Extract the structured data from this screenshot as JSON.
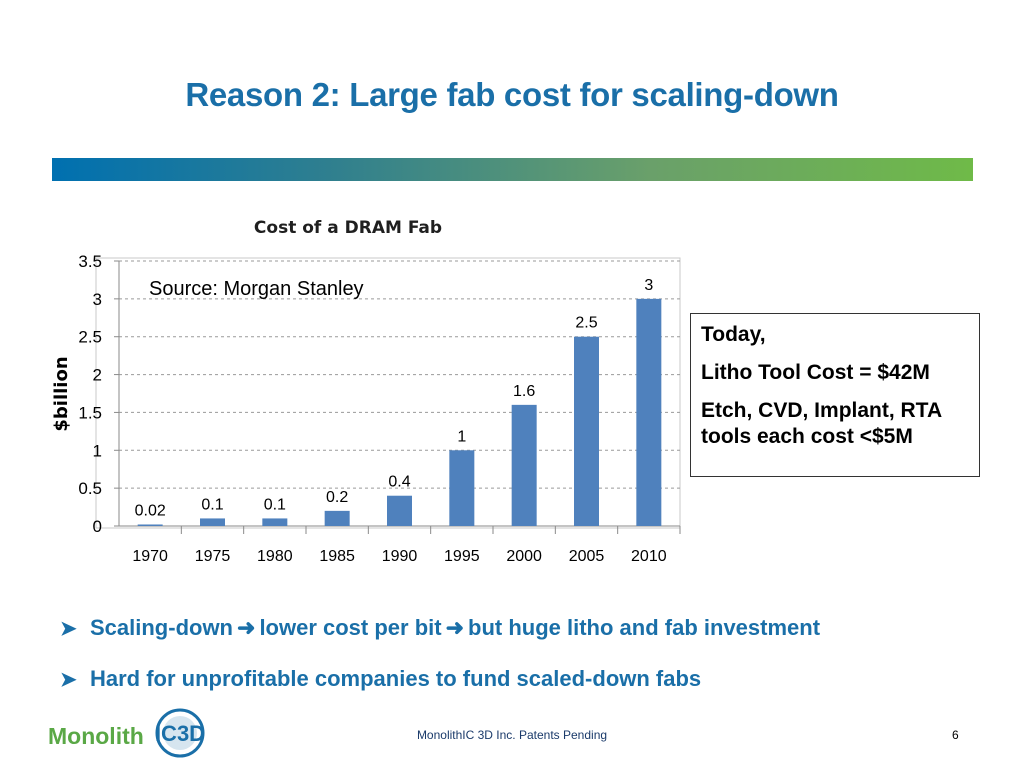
{
  "slide": {
    "title": "Reason 2: Large fab cost for scaling-down",
    "footer_text": "MonolithIC 3D Inc. Patents Pending",
    "page_number": "6",
    "logo_text": "Monolith",
    "logo_badge": "IC3D"
  },
  "chart_data": {
    "type": "bar",
    "title": "Cost of a DRAM Fab",
    "ylabel": "$billion",
    "xlabel": "",
    "categories": [
      "1970",
      "1975",
      "1980",
      "1985",
      "1990",
      "1995",
      "2000",
      "2005",
      "2010"
    ],
    "values": [
      0.02,
      0.1,
      0.1,
      0.2,
      0.4,
      1,
      1.6,
      2.5,
      3
    ],
    "data_labels": [
      "0.02",
      "0.1",
      "0.1",
      "0.2",
      "0.4",
      "1",
      "1.6",
      "2.5",
      "3"
    ],
    "ylim": [
      0,
      3.5
    ],
    "yticks": [
      "0",
      "0.5",
      "1",
      "1.5",
      "2",
      "2.5",
      "3",
      "3.5"
    ],
    "grid": true,
    "bar_color": "#4f81bd",
    "annotation": "Source: Morgan Stanley"
  },
  "callout": {
    "line1": "Today,",
    "line2": "Litho Tool Cost = $42M",
    "line3": "Etch, CVD, Implant, RTA tools each cost <$5M"
  },
  "bullets": [
    {
      "part1": "Scaling-down",
      "part2": "lower cost per bit",
      "part3": "but huge litho and fab investment"
    },
    {
      "text": "Hard for unprofitable companies to fund scaled-down fabs"
    }
  ],
  "colors": {
    "title": "#1a6fa8",
    "bullet": "#1a6fa8",
    "bar": "#4f81bd",
    "logo_green": "#5aa846",
    "logo_blue": "#1a6fa8"
  }
}
